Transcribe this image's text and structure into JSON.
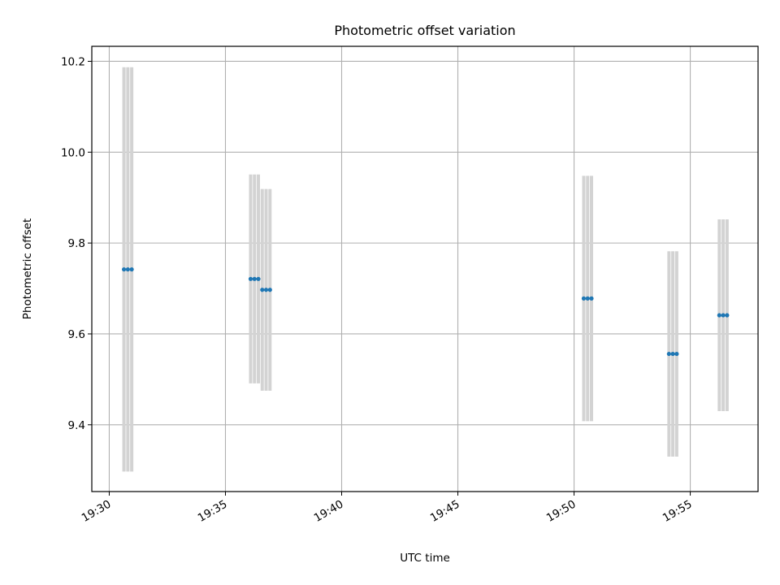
{
  "chart_data": {
    "type": "scatter",
    "title": "Photometric offset variation",
    "xlabel": "UTC time",
    "ylabel": "Photometric offset",
    "xlim": [
      "19:29:15",
      "19:57:55"
    ],
    "ylim": [
      9.253,
      10.233
    ],
    "x_ticks": [
      "19:30",
      "19:35",
      "19:40",
      "19:45",
      "19:50",
      "19:55"
    ],
    "y_ticks": [
      "9.4",
      "9.6",
      "9.8",
      "10.0",
      "10.2"
    ],
    "grid": true,
    "marker_color": "#1f77b4",
    "errorbar_color": "#d3d3d3",
    "series": [
      {
        "points": [
          {
            "x": "19:30:38",
            "y": 9.742,
            "yerr": 0.445
          },
          {
            "x": "19:30:48",
            "y": 9.742,
            "yerr": 0.445
          },
          {
            "x": "19:30:58",
            "y": 9.742,
            "yerr": 0.445
          },
          {
            "x": "19:36:05",
            "y": 9.721,
            "yerr": 0.23
          },
          {
            "x": "19:36:15",
            "y": 9.721,
            "yerr": 0.23
          },
          {
            "x": "19:36:25",
            "y": 9.721,
            "yerr": 0.23
          },
          {
            "x": "19:36:35",
            "y": 9.697,
            "yerr": 0.222
          },
          {
            "x": "19:36:45",
            "y": 9.697,
            "yerr": 0.222
          },
          {
            "x": "19:36:55",
            "y": 9.697,
            "yerr": 0.222
          },
          {
            "x": "19:50:25",
            "y": 9.678,
            "yerr": 0.27
          },
          {
            "x": "19:50:35",
            "y": 9.678,
            "yerr": 0.27
          },
          {
            "x": "19:50:45",
            "y": 9.678,
            "yerr": 0.27
          },
          {
            "x": "19:54:05",
            "y": 9.556,
            "yerr": 0.226
          },
          {
            "x": "19:54:15",
            "y": 9.556,
            "yerr": 0.226
          },
          {
            "x": "19:54:25",
            "y": 9.556,
            "yerr": 0.226
          },
          {
            "x": "19:56:15",
            "y": 9.641,
            "yerr": 0.211
          },
          {
            "x": "19:56:25",
            "y": 9.641,
            "yerr": 0.211
          },
          {
            "x": "19:56:35",
            "y": 9.641,
            "yerr": 0.211
          }
        ]
      }
    ]
  }
}
